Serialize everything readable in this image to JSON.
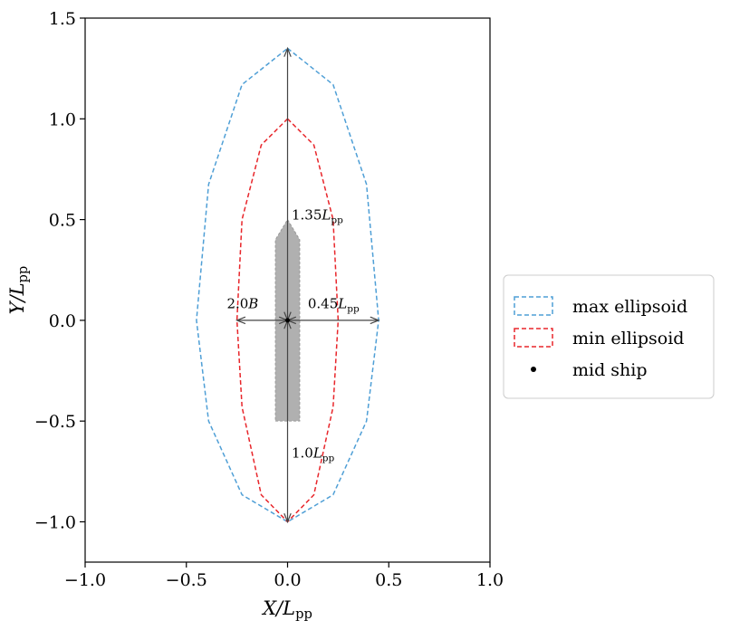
{
  "chart_data": {
    "type": "line",
    "title": "",
    "xlabel": "X/L_pp",
    "ylabel": "Y/L_pp",
    "xlim": [
      -1.0,
      1.0
    ],
    "ylim": [
      -1.2,
      1.5
    ],
    "x_ticks": [
      -1.0,
      -0.5,
      0.0,
      0.5,
      1.0
    ],
    "x_tick_labels": [
      "−1.0",
      "−0.5",
      "0.0",
      "0.5",
      "1.0"
    ],
    "y_ticks": [
      -1.0,
      -0.5,
      0.0,
      0.5,
      1.0,
      1.5
    ],
    "y_tick_labels": [
      "−1.0",
      "−0.5",
      "0.0",
      "0.5",
      "1.0",
      "1.5"
    ],
    "grid": false,
    "legend_position": "outside-right",
    "series": [
      {
        "name": "max ellipsoid",
        "color": "#4f9fd6",
        "style": "dashed",
        "points": [
          [
            0.0,
            1.35
          ],
          [
            0.225,
            1.17
          ],
          [
            0.39,
            0.675
          ],
          [
            0.45,
            0.0
          ],
          [
            0.39,
            -0.5
          ],
          [
            0.225,
            -0.866
          ],
          [
            0.0,
            -1.0
          ],
          [
            -0.225,
            -0.866
          ],
          [
            -0.39,
            -0.5
          ],
          [
            -0.45,
            0.0
          ],
          [
            -0.39,
            0.675
          ],
          [
            -0.225,
            1.17
          ],
          [
            0.0,
            1.35
          ]
        ]
      },
      {
        "name": "min ellipsoid",
        "color": "#e8262b",
        "style": "dashed",
        "points": [
          [
            0.0,
            1.0
          ],
          [
            0.13,
            0.87
          ],
          [
            0.225,
            0.5
          ],
          [
            0.25,
            0.0
          ],
          [
            0.225,
            -0.43
          ],
          [
            0.13,
            -0.866
          ],
          [
            0.0,
            -1.0
          ],
          [
            -0.13,
            -0.866
          ],
          [
            -0.225,
            -0.43
          ],
          [
            -0.25,
            0.0
          ],
          [
            -0.225,
            0.5
          ],
          [
            -0.13,
            0.87
          ],
          [
            0.0,
            1.0
          ]
        ]
      },
      {
        "name": "mid ship",
        "color": "#000000",
        "style": "point",
        "points": [
          [
            0.0,
            0.0
          ]
        ]
      }
    ],
    "ship_hull": {
      "color": "#b0b0b0",
      "points": [
        [
          -0.06,
          -0.5
        ],
        [
          0.06,
          -0.5
        ],
        [
          0.06,
          0.4
        ],
        [
          0.0,
          0.5
        ],
        [
          -0.06,
          0.4
        ]
      ]
    },
    "annotations": [
      {
        "text": "1.35L_pp",
        "x": 0.02,
        "y": 0.5
      },
      {
        "text": "2.0B",
        "x": -0.3,
        "y": 0.06
      },
      {
        "text": "0.45L_pp",
        "x": 0.1,
        "y": 0.06
      },
      {
        "text": "1.0L_pp",
        "x": 0.02,
        "y": -0.68
      }
    ],
    "arrows": [
      {
        "from": [
          0.0,
          0.0
        ],
        "to": [
          0.0,
          1.35
        ]
      },
      {
        "from": [
          0.0,
          0.0
        ],
        "to": [
          0.0,
          -1.0
        ]
      },
      {
        "from": [
          0.0,
          0.0
        ],
        "to": [
          -0.25,
          0.0
        ]
      },
      {
        "from": [
          0.0,
          0.0
        ],
        "to": [
          0.45,
          0.0
        ]
      }
    ]
  }
}
